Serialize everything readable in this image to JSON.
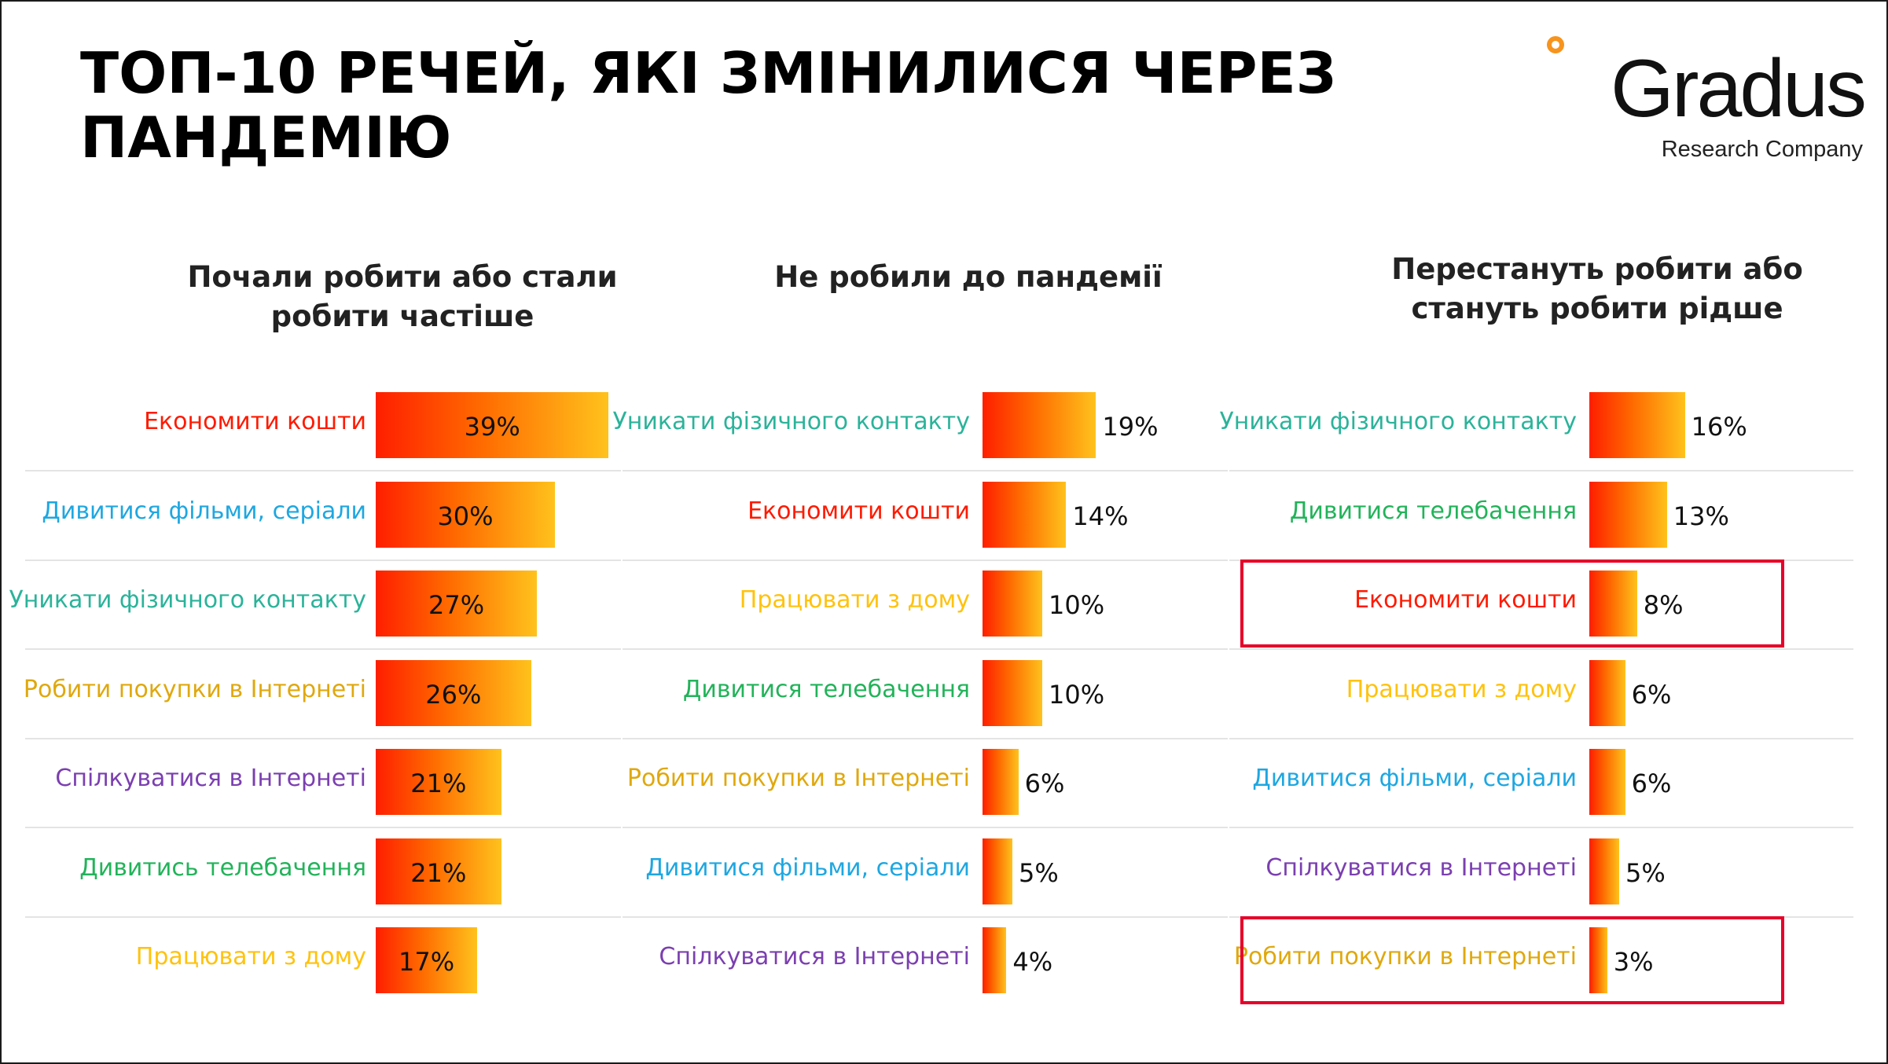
{
  "title": "ТОП-10 РЕЧЕЙ, ЯКІ ЗМІНИЛИСЯ ЧЕРЕЗ ПАНДЕМІЮ",
  "logo": {
    "brand": "Gradus",
    "tagline": "Research Company"
  },
  "colors": {
    "economize": "#ff1a00",
    "films": "#1ea7e1",
    "avoid_contact": "#2bb39a",
    "shop_online": "#e0a80e",
    "communicate_online": "#7b3fb0",
    "television": "#22b35a",
    "work_from_home": "#ffc20e",
    "bar_start": "#ff1e00",
    "bar_end": "#ffc21c",
    "highlight": "#e6002a"
  },
  "chart_data": [
    {
      "type": "bar",
      "orientation": "horizontal",
      "title": "Почали робити або стали робити частіше",
      "categories": [
        "Економити кошти",
        "Дивитися фільми, серіали",
        "Уникати фізичного контакту",
        "Робити покупки в Інтернеті",
        "Спілкуватися в Інтернеті",
        "Дивитись телебачення",
        "Працювати з дому"
      ],
      "values": [
        39,
        30,
        27,
        26,
        21,
        21,
        17
      ],
      "labels": [
        "39%",
        "30%",
        "27%",
        "26%",
        "21%",
        "21%",
        "17%"
      ],
      "category_colors": [
        "economize",
        "films",
        "avoid_contact",
        "shop_online",
        "communicate_online",
        "television",
        "work_from_home"
      ],
      "label_position": "inside",
      "highlight_rows": []
    },
    {
      "type": "bar",
      "orientation": "horizontal",
      "title": "Не робили до пандемії",
      "categories": [
        "Уникати фізичного контакту",
        "Економити кошти",
        "Працювати з дому",
        "Дивитися телебачення",
        "Робити покупки в Інтернеті",
        "Дивитися фільми, серіали",
        "Спілкуватися в Інтернеті"
      ],
      "values": [
        19,
        14,
        10,
        10,
        6,
        5,
        4
      ],
      "labels": [
        "19%",
        "14%",
        "10%",
        "10%",
        "6%",
        "5%",
        "4%"
      ],
      "category_colors": [
        "avoid_contact",
        "economize",
        "work_from_home",
        "television",
        "shop_online",
        "films",
        "communicate_online"
      ],
      "label_position": "outside",
      "highlight_rows": []
    },
    {
      "type": "bar",
      "orientation": "horizontal",
      "title": "Перестануть робити або стануть робити рідше",
      "categories": [
        "Уникати фізичного контакту",
        "Дивитися телебачення",
        "Економити кошти",
        "Працювати з дому",
        "Дивитися фільми, серіали",
        "Спілкуватися в Інтернеті",
        "Робити покупки в Інтернеті"
      ],
      "values": [
        16,
        13,
        8,
        6,
        6,
        5,
        3
      ],
      "labels": [
        "16%",
        "13%",
        "8%",
        "6%",
        "6%",
        "5%",
        "3%"
      ],
      "category_colors": [
        "avoid_contact",
        "television",
        "economize",
        "work_from_home",
        "films",
        "communicate_online",
        "shop_online"
      ],
      "label_position": "outside",
      "highlight_rows": [
        2,
        6
      ]
    }
  ]
}
